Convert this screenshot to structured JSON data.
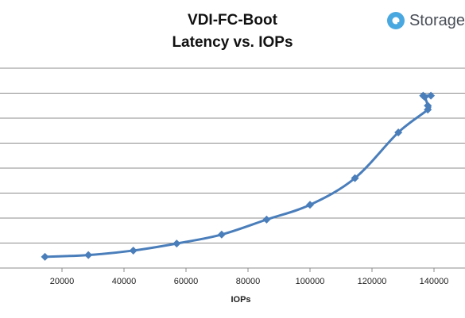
{
  "chart_data": {
    "type": "line",
    "title": [
      "VDI-FC-Boot",
      "Latency vs. IOPs"
    ],
    "xlabel": "IOPs",
    "ylabel": "",
    "xlim": [
      0,
      150000
    ],
    "xticks": [
      20000,
      40000,
      60000,
      80000,
      100000,
      120000,
      140000
    ],
    "ygrid_lines": 8,
    "ylim": [
      0,
      8
    ],
    "grid": "horizontal",
    "legend": "none",
    "series": [
      {
        "color": "#4a7ebb",
        "points": [
          {
            "x": 14500,
            "y": 0.45
          },
          {
            "x": 28500,
            "y": 0.52
          },
          {
            "x": 43000,
            "y": 0.7
          },
          {
            "x": 57000,
            "y": 0.98
          },
          {
            "x": 71500,
            "y": 1.34
          },
          {
            "x": 86000,
            "y": 1.94
          },
          {
            "x": 100000,
            "y": 2.53
          },
          {
            "x": 114500,
            "y": 3.6
          },
          {
            "x": 128500,
            "y": 5.43
          },
          {
            "x": 138000,
            "y": 6.34
          },
          {
            "x": 138000,
            "y": 6.5
          },
          {
            "x": 137000,
            "y": 6.85
          },
          {
            "x": 136500,
            "y": 6.9
          },
          {
            "x": 139000,
            "y": 6.9
          }
        ]
      }
    ]
  },
  "brand": {
    "name": "Storage",
    "color": "#4aa8e0"
  }
}
